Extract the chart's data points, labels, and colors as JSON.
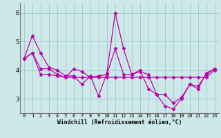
{
  "xlabel": "Windchill (Refroidissement éolien,°C)",
  "bg_color": "#cce8e8",
  "grid_color": "#aacccc",
  "line_color": "#bb00aa",
  "marker": "D",
  "markersize": 2.5,
  "linewidth": 0.9,
  "xlim": [
    -0.5,
    23.5
  ],
  "ylim": [
    2.5,
    6.35
  ],
  "xticks": [
    0,
    1,
    2,
    3,
    4,
    5,
    6,
    7,
    8,
    9,
    10,
    11,
    12,
    13,
    14,
    15,
    16,
    17,
    18,
    19,
    20,
    21,
    22,
    23
  ],
  "yticks": [
    3,
    4,
    5,
    6
  ],
  "series": [
    [
      4.4,
      5.2,
      4.6,
      4.1,
      4.0,
      3.8,
      3.8,
      3.5,
      3.8,
      3.1,
      3.9,
      6.0,
      4.75,
      3.85,
      4.0,
      3.35,
      3.15,
      2.75,
      2.65,
      3.0,
      3.5,
      3.35,
      3.9,
      4.05
    ],
    [
      4.4,
      4.6,
      3.85,
      3.85,
      3.8,
      3.75,
      3.75,
      3.75,
      3.75,
      3.75,
      3.75,
      3.75,
      3.75,
      3.75,
      3.75,
      3.75,
      3.75,
      3.75,
      3.75,
      3.75,
      3.75,
      3.75,
      3.75,
      4.0
    ],
    [
      4.4,
      4.6,
      4.05,
      4.05,
      3.85,
      3.75,
      4.05,
      3.95,
      3.75,
      3.8,
      3.85,
      4.75,
      3.85,
      3.85,
      3.95,
      3.85,
      3.15,
      3.15,
      2.85,
      3.05,
      3.5,
      3.45,
      3.85,
      4.05
    ]
  ]
}
